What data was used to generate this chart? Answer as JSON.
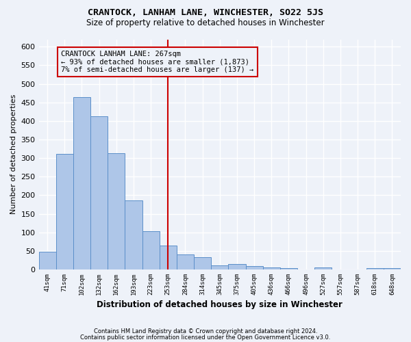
{
  "title": "CRANTOCK, LANHAM LANE, WINCHESTER, SO22 5JS",
  "subtitle": "Size of property relative to detached houses in Winchester",
  "xlabel": "Distribution of detached houses by size in Winchester",
  "ylabel": "Number of detached properties",
  "footer_line1": "Contains HM Land Registry data © Crown copyright and database right 2024.",
  "footer_line2": "Contains public sector information licensed under the Open Government Licence v3.0.",
  "annotation_line1": "CRANTOCK LANHAM LANE: 267sqm",
  "annotation_line2": "← 93% of detached houses are smaller (1,873)",
  "annotation_line3": "7% of semi-detached houses are larger (137) →",
  "categories": [
    "41sqm",
    "71sqm",
    "102sqm",
    "132sqm",
    "162sqm",
    "193sqm",
    "223sqm",
    "253sqm",
    "284sqm",
    "314sqm",
    "345sqm",
    "375sqm",
    "405sqm",
    "436sqm",
    "466sqm",
    "496sqm",
    "527sqm",
    "557sqm",
    "587sqm",
    "618sqm",
    "648sqm"
  ],
  "bar_values": [
    48,
    312,
    465,
    413,
    313,
    187,
    103,
    65,
    40,
    33,
    12,
    15,
    9,
    6,
    3,
    0,
    5,
    0,
    0,
    4,
    4
  ],
  "bar_color": "#aec6e8",
  "bar_edge_color": "#5b8fc9",
  "vline_pos": 7.5,
  "ylim": [
    0,
    620
  ],
  "yticks": [
    0,
    50,
    100,
    150,
    200,
    250,
    300,
    350,
    400,
    450,
    500,
    550,
    600
  ],
  "bg_color": "#eef2f9",
  "grid_color": "#ffffff",
  "vline_color": "#cc0000",
  "annotation_box_edge_color": "#cc0000"
}
